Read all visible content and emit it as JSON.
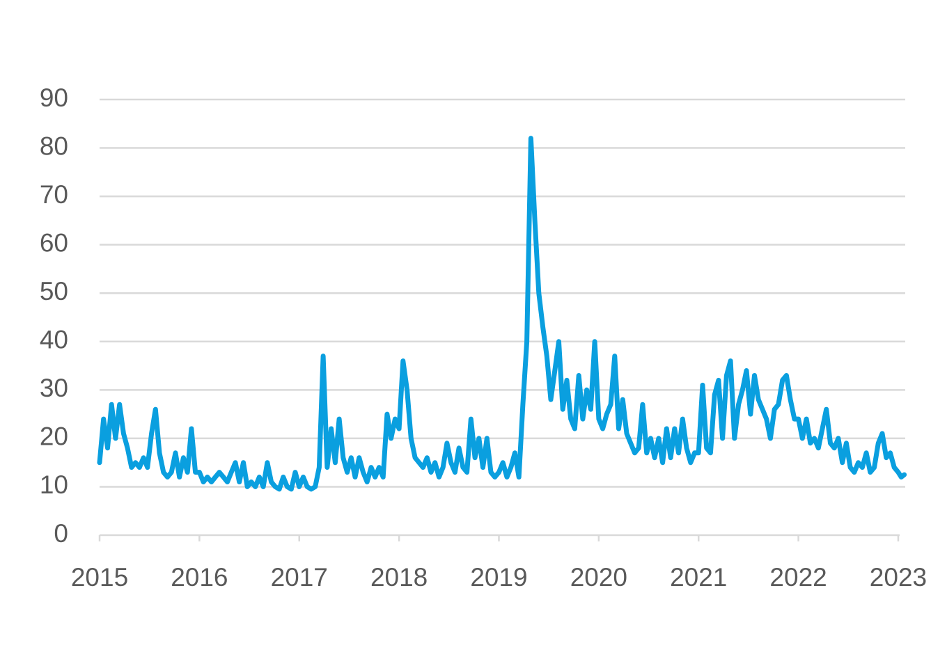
{
  "chart_data": {
    "type": "line",
    "color": "#0a9fdf",
    "grid": true,
    "xlim": [
      2015,
      2023.07
    ],
    "xticks": [
      2015,
      2016,
      2017,
      2018,
      2019,
      2020,
      2021,
      2022,
      2023
    ],
    "ylim": [
      0,
      90
    ],
    "yticks": [
      0,
      10,
      20,
      30,
      40,
      50,
      60,
      70,
      80,
      90
    ],
    "x": [
      2015,
      2015.04,
      2015.08,
      2015.12,
      2015.16,
      2015.2,
      2015.24,
      2015.28,
      2015.32,
      2015.36,
      2015.4,
      2015.44,
      2015.48,
      2015.52,
      2015.56,
      2015.6,
      2015.64,
      2015.68,
      2015.72,
      2015.76,
      2015.8,
      2015.84,
      2015.88,
      2015.92,
      2015.96,
      2016,
      2016.04,
      2016.08,
      2016.12,
      2016.16,
      2016.2,
      2016.24,
      2016.28,
      2016.32,
      2016.36,
      2016.4,
      2016.44,
      2016.48,
      2016.52,
      2016.56,
      2016.6,
      2016.64,
      2016.68,
      2016.72,
      2016.76,
      2016.8,
      2016.84,
      2016.88,
      2016.92,
      2016.96,
      2017,
      2017.04,
      2017.08,
      2017.12,
      2017.16,
      2017.2,
      2017.24,
      2017.28,
      2017.32,
      2017.36,
      2017.4,
      2017.44,
      2017.48,
      2017.52,
      2017.56,
      2017.6,
      2017.64,
      2017.68,
      2017.72,
      2017.76,
      2017.8,
      2017.84,
      2017.88,
      2017.92,
      2017.96,
      2018,
      2018.04,
      2018.08,
      2018.12,
      2018.16,
      2018.2,
      2018.24,
      2018.28,
      2018.32,
      2018.36,
      2018.4,
      2018.44,
      2018.48,
      2018.52,
      2018.56,
      2018.6,
      2018.64,
      2018.68,
      2018.72,
      2018.76,
      2018.8,
      2018.84,
      2018.88,
      2018.92,
      2018.96,
      2019,
      2019.04,
      2019.08,
      2019.12,
      2019.16,
      2019.2,
      2019.24,
      2019.28,
      2019.32,
      2019.36,
      2019.4,
      2019.44,
      2019.48,
      2019.52,
      2019.56,
      2019.6,
      2019.64,
      2019.68,
      2019.72,
      2019.76,
      2019.8,
      2019.84,
      2019.88,
      2019.92,
      2019.96,
      2020,
      2020.04,
      2020.08,
      2020.12,
      2020.16,
      2020.2,
      2020.24,
      2020.28,
      2020.32,
      2020.36,
      2020.4,
      2020.44,
      2020.48,
      2020.52,
      2020.56,
      2020.6,
      2020.64,
      2020.68,
      2020.72,
      2020.76,
      2020.8,
      2020.84,
      2020.88,
      2020.92,
      2020.96,
      2021,
      2021.04,
      2021.08,
      2021.12,
      2021.16,
      2021.2,
      2021.24,
      2021.28,
      2021.32,
      2021.36,
      2021.4,
      2021.44,
      2021.48,
      2021.52,
      2021.56,
      2021.6,
      2021.64,
      2021.68,
      2021.72,
      2021.76,
      2021.8,
      2021.84,
      2021.88,
      2021.92,
      2021.96,
      2022,
      2022.04,
      2022.08,
      2022.12,
      2022.16,
      2022.2,
      2022.24,
      2022.28,
      2022.32,
      2022.36,
      2022.4,
      2022.44,
      2022.48,
      2022.52,
      2022.56,
      2022.6,
      2022.64,
      2022.68,
      2022.72,
      2022.76,
      2022.8,
      2022.84,
      2022.88,
      2022.92,
      2022.96,
      2023,
      2023.03,
      2023.06
    ],
    "values": [
      15,
      24,
      18,
      27,
      20,
      27,
      21,
      18,
      14,
      15,
      14,
      16,
      14,
      21,
      26,
      17,
      13,
      12,
      13,
      17,
      12,
      16,
      13,
      22,
      13,
      13,
      11,
      12,
      11,
      12,
      13,
      12,
      11,
      13,
      15,
      11,
      15,
      10,
      11,
      10,
      12,
      10,
      15,
      11,
      10,
      9.5,
      12,
      10,
      9.5,
      13,
      10,
      12,
      10,
      9.5,
      10,
      14,
      37,
      14,
      22,
      15,
      24,
      16,
      13,
      16,
      12,
      16,
      13,
      11,
      14,
      12,
      14,
      12,
      25,
      20,
      24,
      22,
      36,
      30,
      20,
      16,
      15,
      14,
      16,
      13,
      15,
      12,
      14,
      19,
      15,
      13,
      18,
      14,
      13,
      24,
      16,
      20,
      14,
      20,
      13,
      12,
      13,
      15,
      12,
      14,
      17,
      12,
      27,
      40,
      82,
      65,
      50,
      43,
      37,
      28,
      34,
      40,
      26,
      32,
      24,
      22,
      33,
      24,
      30,
      26,
      40,
      24,
      22,
      25,
      27,
      37,
      22,
      28,
      21,
      19,
      17,
      18,
      27,
      17,
      20,
      16,
      20,
      15,
      22,
      16,
      22,
      17,
      24,
      18,
      15,
      17,
      17,
      31,
      18,
      17,
      29,
      32,
      20,
      33,
      36,
      20,
      27,
      30,
      34,
      25,
      33,
      28,
      26,
      24,
      20,
      26,
      27,
      32,
      33,
      28,
      24,
      24,
      20,
      24,
      19,
      20,
      18,
      22,
      26,
      19,
      18,
      20,
      15,
      19,
      14,
      13,
      15,
      14,
      17,
      13,
      14,
      19,
      21,
      16,
      17,
      14,
      13,
      12,
      12.5
    ]
  }
}
